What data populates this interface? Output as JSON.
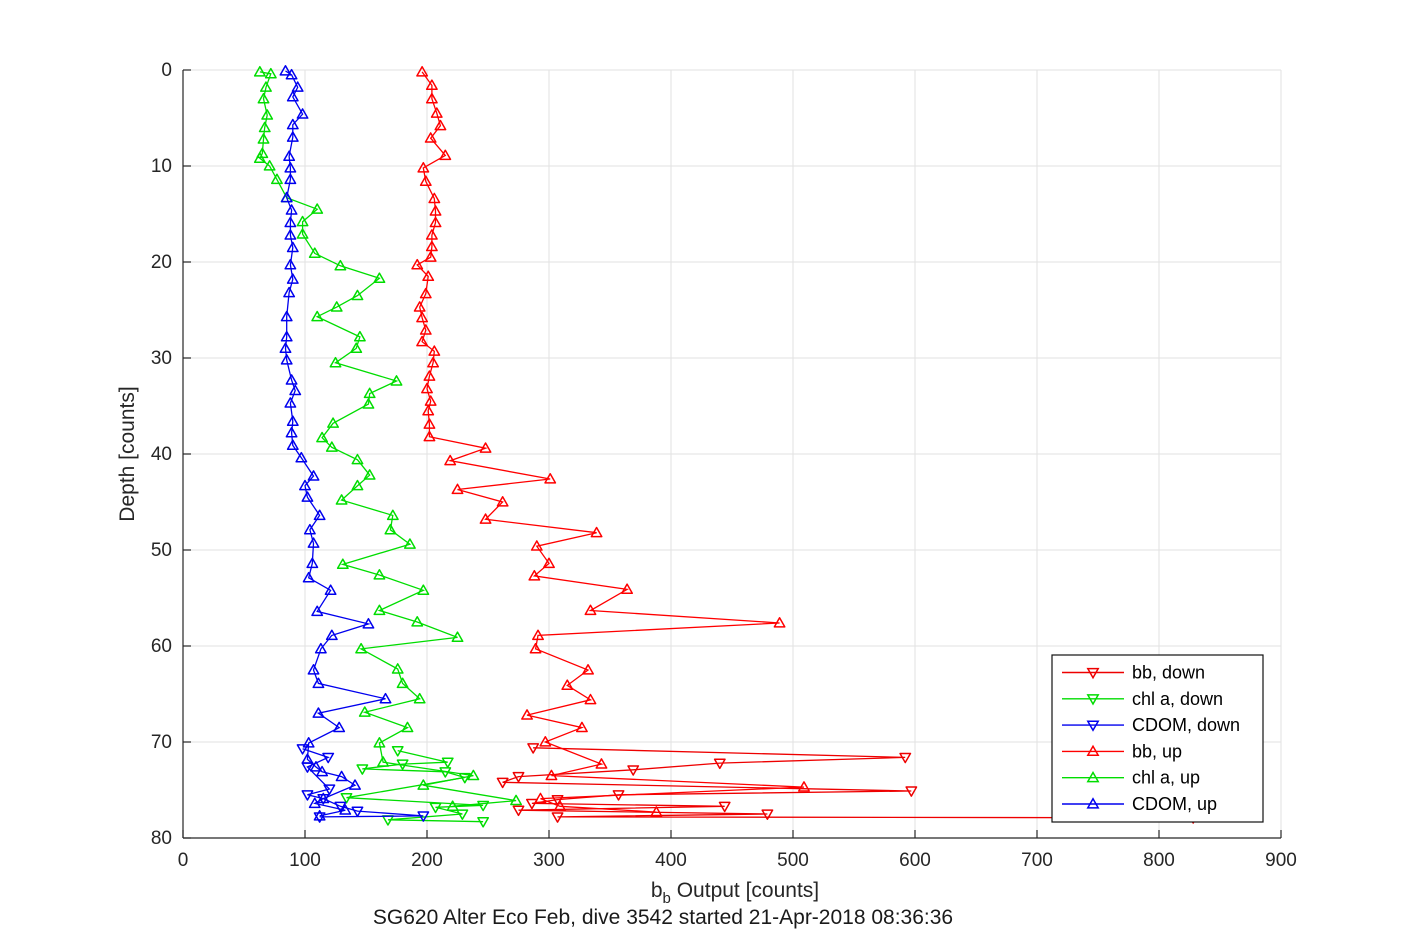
{
  "figure": {
    "title": "SG620 Alter Eco Feb, dive 3542 started 21-Apr-2018 08:36:36",
    "ylabel": "Depth [counts]",
    "xlabel": {
      "base": "b",
      "sub": "b",
      "rest": " Output [counts]"
    },
    "background": "#ffffff"
  },
  "chart_data": {
    "type": "line",
    "title": "SG620 Alter Eco Feb, dive 3542 started 21-Apr-2018 08:36:36",
    "xlabel": "b_b Output [counts]",
    "ylabel": "Depth [counts]",
    "xlim": [
      0,
      900
    ],
    "ylim": [
      0,
      80
    ],
    "y_inverted": true,
    "grid": true,
    "x_ticks": [
      0,
      100,
      200,
      300,
      400,
      500,
      600,
      700,
      800,
      900
    ],
    "y_ticks": [
      0,
      10,
      20,
      30,
      40,
      50,
      60,
      70,
      80
    ],
    "axis_color": "#262626",
    "grid_color": "#e2e2e2",
    "legend_position": "inside-bottom-right",
    "series": [
      {
        "name": "bb, down",
        "color": "#ee0000",
        "marker": "triangle-down",
        "points": [
          [
            287,
            70.6
          ],
          [
            592,
            71.6
          ],
          [
            440,
            72.2
          ],
          [
            369,
            72.9
          ],
          [
            275,
            73.6
          ],
          [
            262,
            74.2
          ],
          [
            597,
            75.1
          ],
          [
            357,
            75.5
          ],
          [
            307,
            76.0
          ],
          [
            286,
            76.4
          ],
          [
            444,
            76.7
          ],
          [
            275,
            77.1
          ],
          [
            479,
            77.5
          ],
          [
            307,
            77.8
          ],
          [
            828,
            77.9
          ]
        ]
      },
      {
        "name": "chl a, down",
        "color": "#00dd00",
        "marker": "triangle-down",
        "points": [
          [
            176,
            70.9
          ],
          [
            217,
            72.1
          ],
          [
            180,
            72.3
          ],
          [
            147,
            72.8
          ],
          [
            215,
            73.1
          ],
          [
            231,
            73.7
          ],
          [
            134,
            75.8
          ],
          [
            246,
            76.6
          ],
          [
            207,
            76.8
          ],
          [
            229,
            77.5
          ],
          [
            168,
            78.1
          ],
          [
            246,
            78.3
          ]
        ]
      },
      {
        "name": "CDOM, down",
        "color": "#0000ee",
        "marker": "triangle-down",
        "points": [
          [
            98,
            70.7
          ],
          [
            119,
            71.6
          ],
          [
            102,
            72.6
          ],
          [
            120,
            74.9
          ],
          [
            102,
            75.5
          ],
          [
            115,
            75.9
          ],
          [
            129,
            76.7
          ],
          [
            143,
            77.2
          ],
          [
            197,
            77.7
          ],
          [
            112,
            77.8
          ]
        ]
      },
      {
        "name": "bb, up",
        "color": "#ff0000",
        "marker": "triangle-up",
        "points": [
          [
            196,
            0.2
          ],
          [
            204,
            1.6
          ],
          [
            204,
            3.0
          ],
          [
            208,
            4.5
          ],
          [
            211,
            5.8
          ],
          [
            203,
            7.1
          ],
          [
            215,
            8.9
          ],
          [
            197,
            10.2
          ],
          [
            199,
            11.6
          ],
          [
            206,
            13.4
          ],
          [
            207,
            14.7
          ],
          [
            207,
            15.9
          ],
          [
            204,
            17.2
          ],
          [
            204,
            18.4
          ],
          [
            203,
            19.5
          ],
          [
            192,
            20.3
          ],
          [
            201,
            21.5
          ],
          [
            199,
            23.3
          ],
          [
            194,
            24.7
          ],
          [
            196,
            25.8
          ],
          [
            199,
            27.1
          ],
          [
            196,
            28.3
          ],
          [
            206,
            29.3
          ],
          [
            205,
            30.5
          ],
          [
            202,
            31.9
          ],
          [
            200,
            33.2
          ],
          [
            203,
            34.5
          ],
          [
            201,
            35.5
          ],
          [
            202,
            36.9
          ],
          [
            202,
            38.2
          ],
          [
            248,
            39.4
          ],
          [
            219,
            40.7
          ],
          [
            301,
            42.6
          ],
          [
            225,
            43.7
          ],
          [
            262,
            45.0
          ],
          [
            248,
            46.8
          ],
          [
            339,
            48.2
          ],
          [
            290,
            49.6
          ],
          [
            300,
            51.4
          ],
          [
            288,
            52.7
          ],
          [
            364,
            54.1
          ],
          [
            334,
            56.3
          ],
          [
            489,
            57.6
          ],
          [
            291,
            58.9
          ],
          [
            289,
            60.3
          ],
          [
            332,
            62.5
          ],
          [
            315,
            64.1
          ],
          [
            334,
            65.6
          ],
          [
            282,
            67.2
          ],
          [
            327,
            68.5
          ],
          [
            297,
            70.0
          ],
          [
            343,
            72.3
          ],
          [
            302,
            73.5
          ],
          [
            509,
            74.7
          ],
          [
            293,
            75.9
          ],
          [
            309,
            76.7
          ],
          [
            388,
            77.3
          ]
        ]
      },
      {
        "name": "chl a, up",
        "color": "#00dd00",
        "marker": "triangle-up",
        "points": [
          [
            63,
            0.2
          ],
          [
            72,
            0.4
          ],
          [
            68,
            1.8
          ],
          [
            66,
            3.0
          ],
          [
            69,
            4.7
          ],
          [
            67,
            6.0
          ],
          [
            66,
            7.2
          ],
          [
            65,
            8.7
          ],
          [
            63,
            9.2
          ],
          [
            71,
            10.0
          ],
          [
            77,
            11.4
          ],
          [
            85,
            13.3
          ],
          [
            110,
            14.5
          ],
          [
            98,
            15.8
          ],
          [
            98,
            17.1
          ],
          [
            108,
            19.1
          ],
          [
            129,
            20.4
          ],
          [
            161,
            21.7
          ],
          [
            143,
            23.5
          ],
          [
            126,
            24.7
          ],
          [
            110,
            25.7
          ],
          [
            145,
            27.8
          ],
          [
            142,
            29.0
          ],
          [
            125,
            30.5
          ],
          [
            175,
            32.4
          ],
          [
            153,
            33.7
          ],
          [
            152,
            34.8
          ],
          [
            123,
            36.8
          ],
          [
            114,
            38.3
          ],
          [
            122,
            39.3
          ],
          [
            143,
            40.6
          ],
          [
            153,
            42.2
          ],
          [
            143,
            43.3
          ],
          [
            130,
            44.8
          ],
          [
            172,
            46.4
          ],
          [
            170,
            47.9
          ],
          [
            186,
            49.4
          ],
          [
            131,
            51.5
          ],
          [
            161,
            52.6
          ],
          [
            197,
            54.2
          ],
          [
            161,
            56.3
          ],
          [
            192,
            57.5
          ],
          [
            225,
            59.1
          ],
          [
            146,
            60.3
          ],
          [
            176,
            62.4
          ],
          [
            180,
            63.9
          ],
          [
            194,
            65.5
          ],
          [
            149,
            66.9
          ],
          [
            184,
            68.5
          ],
          [
            161,
            70.1
          ],
          [
            164,
            72.1
          ],
          [
            238,
            73.5
          ],
          [
            197,
            74.5
          ],
          [
            273,
            76.1
          ],
          [
            221,
            76.7
          ]
        ]
      },
      {
        "name": "CDOM, up",
        "color": "#0000ee",
        "marker": "triangle-up",
        "points": [
          [
            84,
            0.1
          ],
          [
            89,
            0.5
          ],
          [
            94,
            1.8
          ],
          [
            90,
            2.8
          ],
          [
            98,
            4.6
          ],
          [
            90,
            5.7
          ],
          [
            90,
            7.0
          ],
          [
            87,
            9.0
          ],
          [
            88,
            10.2
          ],
          [
            88,
            11.4
          ],
          [
            85,
            13.3
          ],
          [
            89,
            14.6
          ],
          [
            88,
            15.9
          ],
          [
            88,
            17.2
          ],
          [
            90,
            18.5
          ],
          [
            88,
            20.3
          ],
          [
            90,
            21.8
          ],
          [
            87,
            23.2
          ],
          [
            85,
            25.7
          ],
          [
            85,
            27.8
          ],
          [
            84,
            29.0
          ],
          [
            85,
            30.2
          ],
          [
            89,
            32.3
          ],
          [
            92,
            33.4
          ],
          [
            88,
            34.7
          ],
          [
            90,
            36.6
          ],
          [
            89,
            37.8
          ],
          [
            90,
            39.1
          ],
          [
            97,
            40.4
          ],
          [
            107,
            42.3
          ],
          [
            100,
            43.3
          ],
          [
            102,
            44.5
          ],
          [
            112,
            46.4
          ],
          [
            104,
            47.9
          ],
          [
            107,
            49.3
          ],
          [
            106,
            51.4
          ],
          [
            103,
            52.9
          ],
          [
            121,
            54.2
          ],
          [
            110,
            56.4
          ],
          [
            152,
            57.7
          ],
          [
            122,
            58.9
          ],
          [
            113,
            60.3
          ],
          [
            107,
            62.5
          ],
          [
            111,
            63.9
          ],
          [
            166,
            65.5
          ],
          [
            111,
            67.0
          ],
          [
            128,
            68.5
          ],
          [
            103,
            70.1
          ],
          [
            102,
            71.8
          ],
          [
            109,
            72.6
          ],
          [
            114,
            73.1
          ],
          [
            130,
            73.6
          ],
          [
            141,
            74.5
          ],
          [
            115,
            75.9
          ],
          [
            108,
            76.4
          ],
          [
            133,
            77.1
          ],
          [
            112,
            77.7
          ]
        ]
      }
    ]
  }
}
